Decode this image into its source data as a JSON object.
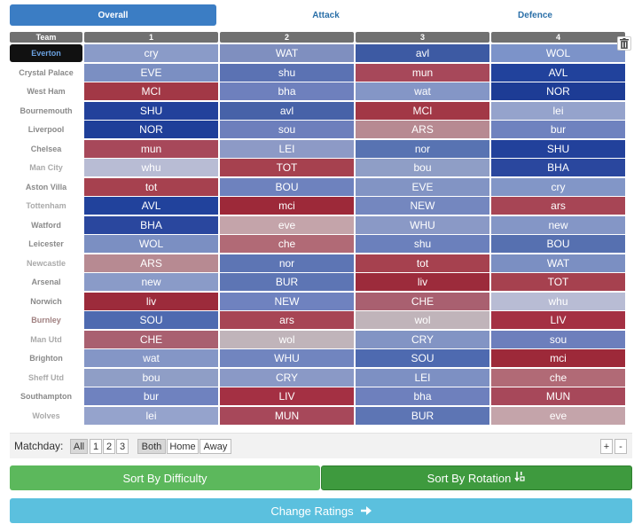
{
  "tabs": [
    "Overall",
    "Attack",
    "Defence"
  ],
  "header": {
    "team": "Team",
    "cols": [
      "1",
      "2",
      "3",
      "4"
    ]
  },
  "rows": [
    {
      "team": "Everton",
      "team_color": "#6aa0e0",
      "selected": true,
      "cells": [
        {
          "t": "cry",
          "c": "#8a9bc8"
        },
        {
          "t": "WAT",
          "c": "#7f8fbf"
        },
        {
          "t": "avl",
          "c": "#3d5aa3"
        },
        {
          "t": "WOL",
          "c": "#7c93c9"
        }
      ]
    },
    {
      "team": "Crystal Palace",
      "team_color": "#8a8a8a",
      "cells": [
        {
          "t": "EVE",
          "c": "#7b8fc2"
        },
        {
          "t": "shu",
          "c": "#5b72b3"
        },
        {
          "t": "mun",
          "c": "#a7485a"
        },
        {
          "t": "AVL",
          "c": "#21429c"
        }
      ]
    },
    {
      "team": "West Ham",
      "team_color": "#8a8a8a",
      "cells": [
        {
          "t": "MCI",
          "c": "#a23846"
        },
        {
          "t": "bha",
          "c": "#6e80bd"
        },
        {
          "t": "wat",
          "c": "#8496c6"
        },
        {
          "t": "NOR",
          "c": "#1d3c95"
        }
      ]
    },
    {
      "team": "Bournemouth",
      "team_color": "#8a8a8a",
      "cells": [
        {
          "t": "SHU",
          "c": "#22419b"
        },
        {
          "t": "avl",
          "c": "#4762a8"
        },
        {
          "t": "MCI",
          "c": "#a23846"
        },
        {
          "t": "lei",
          "c": "#95a3cc"
        }
      ]
    },
    {
      "team": "Liverpool",
      "team_color": "#8a8a8a",
      "cells": [
        {
          "t": "NOR",
          "c": "#1f3f99"
        },
        {
          "t": "sou",
          "c": "#6d7fbc"
        },
        {
          "t": "ARS",
          "c": "#b78a92"
        },
        {
          "t": "bur",
          "c": "#6f82bf"
        }
      ]
    },
    {
      "team": "Chelsea",
      "team_color": "#8a8a8a",
      "cells": [
        {
          "t": "mun",
          "c": "#a7485a"
        },
        {
          "t": "LEI",
          "c": "#8d9ac6"
        },
        {
          "t": "nor",
          "c": "#5873b2"
        },
        {
          "t": "SHU",
          "c": "#22419b"
        }
      ]
    },
    {
      "team": "Man City",
      "team_color": "#aaaaaa",
      "cells": [
        {
          "t": "whu",
          "c": "#b8bcd4"
        },
        {
          "t": "TOT",
          "c": "#a6414f"
        },
        {
          "t": "bou",
          "c": "#8f9ec6"
        },
        {
          "t": "BHA",
          "c": "#2a479e"
        }
      ]
    },
    {
      "team": "Aston Villa",
      "team_color": "#8a8a8a",
      "cells": [
        {
          "t": "tot",
          "c": "#a6414f"
        },
        {
          "t": "BOU",
          "c": "#6e82be"
        },
        {
          "t": "EVE",
          "c": "#8294c4"
        },
        {
          "t": "cry",
          "c": "#8296c7"
        }
      ]
    },
    {
      "team": "Tottenham",
      "team_color": "#aaaaaa",
      "cells": [
        {
          "t": "AVL",
          "c": "#21429c"
        },
        {
          "t": "mci",
          "c": "#9d2939"
        },
        {
          "t": "NEW",
          "c": "#7487bf"
        },
        {
          "t": "ars",
          "c": "#a74555"
        }
      ]
    },
    {
      "team": "Watford",
      "team_color": "#8a8a8a",
      "cells": [
        {
          "t": "BHA",
          "c": "#2a479e"
        },
        {
          "t": "eve",
          "c": "#c4a4aa"
        },
        {
          "t": "WHU",
          "c": "#8a99c6"
        },
        {
          "t": "new",
          "c": "#8496c6"
        }
      ]
    },
    {
      "team": "Leicester",
      "team_color": "#8a8a8a",
      "cells": [
        {
          "t": "WOL",
          "c": "#7b8fc2"
        },
        {
          "t": "che",
          "c": "#b16a76"
        },
        {
          "t": "shu",
          "c": "#6b80bc"
        },
        {
          "t": "BOU",
          "c": "#5670b0"
        }
      ]
    },
    {
      "team": "Newcastle",
      "team_color": "#aaaaaa",
      "cells": [
        {
          "t": "ARS",
          "c": "#b78a92"
        },
        {
          "t": "nor",
          "c": "#5d75b4"
        },
        {
          "t": "tot",
          "c": "#a6414f"
        },
        {
          "t": "WAT",
          "c": "#7b8fc2"
        }
      ]
    },
    {
      "team": "Arsenal",
      "team_color": "#8a8a8a",
      "cells": [
        {
          "t": "new",
          "c": "#8a9bc8"
        },
        {
          "t": "BUR",
          "c": "#5d75b4"
        },
        {
          "t": "liv",
          "c": "#9c2b3b"
        },
        {
          "t": "TOT",
          "c": "#a6414f"
        }
      ]
    },
    {
      "team": "Norwich",
      "team_color": "#8a8a8a",
      "cells": [
        {
          "t": "liv",
          "c": "#9c2b3b"
        },
        {
          "t": "NEW",
          "c": "#6f82bf"
        },
        {
          "t": "CHE",
          "c": "#a96070"
        },
        {
          "t": "whu",
          "c": "#b8bcd4"
        }
      ]
    },
    {
      "team": "Burnley",
      "team_color": "#a08080",
      "cells": [
        {
          "t": "SOU",
          "c": "#4e6ab0"
        },
        {
          "t": "ars",
          "c": "#a74555"
        },
        {
          "t": "wol",
          "c": "#c0b4ba"
        },
        {
          "t": "LIV",
          "c": "#a43043"
        }
      ]
    },
    {
      "team": "Man Utd",
      "team_color": "#aaaaaa",
      "cells": [
        {
          "t": "CHE",
          "c": "#a96070"
        },
        {
          "t": "wol",
          "c": "#c0b4ba"
        },
        {
          "t": "CRY",
          "c": "#8294c4"
        },
        {
          "t": "sou",
          "c": "#6d7fbc"
        }
      ]
    },
    {
      "team": "Brighton",
      "team_color": "#8a8a8a",
      "cells": [
        {
          "t": "wat",
          "c": "#8496c6"
        },
        {
          "t": "WHU",
          "c": "#7185bf"
        },
        {
          "t": "SOU",
          "c": "#4e6ab0"
        },
        {
          "t": "mci",
          "c": "#9d2939"
        }
      ]
    },
    {
      "team": "Sheff Utd",
      "team_color": "#aaaaaa",
      "cells": [
        {
          "t": "bou",
          "c": "#8f9ec6"
        },
        {
          "t": "CRY",
          "c": "#8a99c6"
        },
        {
          "t": "LEI",
          "c": "#7d90c3"
        },
        {
          "t": "che",
          "c": "#b16a76"
        }
      ]
    },
    {
      "team": "Southampton",
      "team_color": "#8a8a8a",
      "cells": [
        {
          "t": "bur",
          "c": "#6f82bf"
        },
        {
          "t": "LIV",
          "c": "#a43043"
        },
        {
          "t": "bha",
          "c": "#6e80bd"
        },
        {
          "t": "MUN",
          "c": "#a7485a"
        }
      ]
    },
    {
      "team": "Wolves",
      "team_color": "#aaaaaa",
      "cells": [
        {
          "t": "lei",
          "c": "#95a3cc"
        },
        {
          "t": "MUN",
          "c": "#a7485a"
        },
        {
          "t": "BUR",
          "c": "#5d75b4"
        },
        {
          "t": "eve",
          "c": "#c4a4aa"
        }
      ]
    }
  ],
  "matchday": {
    "label": "Matchday:",
    "options": [
      "All",
      "1",
      "2",
      "3"
    ],
    "venue": [
      "Both",
      "Home",
      "Away"
    ],
    "plus": "+",
    "minus": "-"
  },
  "buttons": {
    "sort_difficulty": "Sort By Difficulty",
    "sort_rotation": "Sort By Rotation",
    "change_ratings": "Change Ratings"
  },
  "colors": {
    "tab_active": "#3b7dc4",
    "green": "#5cb85c",
    "green_dark": "#3e9a3e",
    "teal": "#5bc0de"
  },
  "icons": {
    "trash": "trash-icon",
    "sort": "sort-icon",
    "arrow": "arrow-right-icon"
  }
}
